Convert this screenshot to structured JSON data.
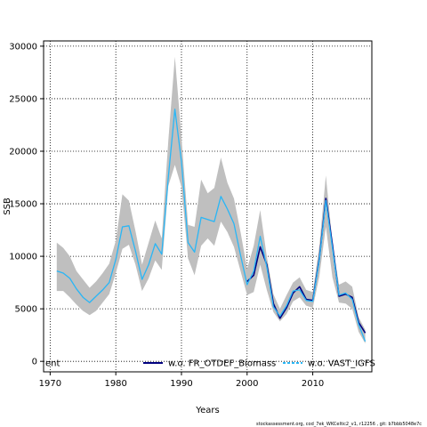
{
  "chart_data": {
    "type": "line",
    "xlabel": "Years",
    "ylabel": "SSB",
    "xlim": [
      1969,
      2019
    ],
    "ylim": [
      -1000,
      30500
    ],
    "x_ticks": [
      1970,
      1980,
      1990,
      2000,
      2010
    ],
    "y_ticks": [
      0,
      5000,
      10000,
      15000,
      20000,
      25000,
      30000
    ],
    "grid": "dotted",
    "legend_position": "bottom",
    "band": {
      "color": "#bfbfbf",
      "x": [
        1971,
        1972,
        1973,
        1974,
        1975,
        1976,
        1977,
        1978,
        1979,
        1980,
        1981,
        1982,
        1983,
        1984,
        1985,
        1986,
        1987,
        1988,
        1989,
        1990,
        1991,
        1992,
        1993,
        1994,
        1995,
        1996,
        1997,
        1998,
        1999,
        2000,
        2001,
        2002,
        2003,
        2004,
        2005,
        2006,
        2007,
        2008,
        2009,
        2010,
        2011,
        2012,
        2013,
        2014,
        2015,
        2016,
        2017,
        2018
      ],
      "upper": [
        11300,
        10800,
        10000,
        8600,
        7800,
        7000,
        7600,
        8400,
        9300,
        11500,
        15900,
        15300,
        12400,
        9200,
        11300,
        13400,
        11700,
        21000,
        29000,
        21300,
        13000,
        12800,
        17300,
        16000,
        16500,
        19400,
        17000,
        15500,
        12300,
        8800,
        11000,
        14400,
        10000,
        6400,
        5000,
        6300,
        7500,
        8000,
        6800,
        6600,
        11000,
        17700,
        11300,
        7300,
        7600,
        7100,
        4200,
        3000
      ],
      "lower": [
        6700,
        6700,
        6100,
        5400,
        4800,
        4400,
        4800,
        5600,
        6400,
        8400,
        10700,
        11100,
        9200,
        6700,
        7900,
        9600,
        8700,
        16700,
        18700,
        16600,
        9800,
        8200,
        11000,
        11700,
        11000,
        13300,
        12300,
        10900,
        8600,
        6300,
        6600,
        9200,
        6800,
        4700,
        3800,
        4500,
        5700,
        6100,
        5300,
        5100,
        8100,
        12800,
        8000,
        5600,
        5500,
        5000,
        2800,
        1700
      ]
    },
    "series": [
      {
        "name": "w.o. FR_OTDEF_Biomass",
        "color": "#000080",
        "x": [
          2000,
          2001,
          2002,
          2003,
          2004,
          2005,
          2006,
          2007,
          2008,
          2009,
          2010,
          2011,
          2012,
          2013,
          2014,
          2015,
          2016,
          2017,
          2018
        ],
        "values": [
          7600,
          8200,
          10900,
          9200,
          5500,
          4100,
          5100,
          6500,
          7100,
          5900,
          5800,
          9800,
          15500,
          11100,
          6200,
          6400,
          6100,
          3700,
          2700
        ]
      },
      {
        "name": "w.o. VAST_IGFS",
        "color": "#29b6f6",
        "x": [
          1971,
          1972,
          1973,
          1974,
          1975,
          1976,
          1977,
          1978,
          1979,
          1980,
          1981,
          1982,
          1983,
          1984,
          1985,
          1986,
          1987,
          1988,
          1989,
          1990,
          1991,
          1992,
          1993,
          1994,
          1995,
          1996,
          1997,
          1998,
          1999,
          2000,
          2001,
          2002,
          2003,
          2004,
          2005,
          2006,
          2007,
          2008,
          2009,
          2010,
          2011,
          2012,
          2013,
          2014,
          2015,
          2016,
          2017,
          2018
        ],
        "values": [
          8600,
          8400,
          7900,
          6900,
          6100,
          5600,
          6200,
          6800,
          7500,
          9700,
          12800,
          12900,
          10500,
          7800,
          9200,
          11200,
          10200,
          17500,
          24000,
          19000,
          11300,
          10400,
          13700,
          13500,
          13300,
          15700,
          14500,
          13100,
          10100,
          7300,
          8600,
          11900,
          9000,
          5200,
          4300,
          5300,
          6700,
          6800,
          5800,
          5700,
          9700,
          15300,
          10800,
          6300,
          6500,
          5900,
          3500,
          1900
        ]
      },
      {
        "name": "ent",
        "color": "#000000",
        "x": [],
        "values": []
      }
    ]
  },
  "footer": {
    "text": "stockassessment.org, cod_7ek_WKCeltic2_v1, r12256 , git: b7bbb5048e7c"
  }
}
